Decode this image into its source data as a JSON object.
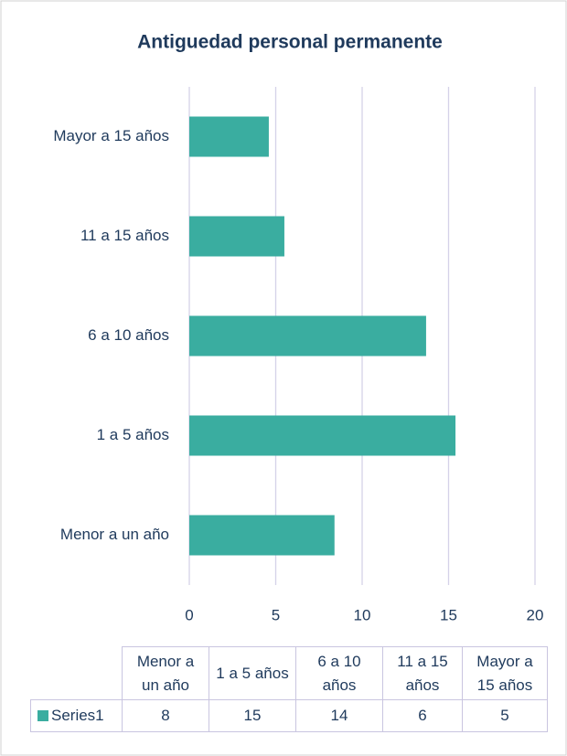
{
  "chart_data": {
    "type": "bar",
    "orientation": "horizontal",
    "title": "Antiguedad personal permanente",
    "categories": [
      "Menor a un año",
      "1 a 5 años",
      "6 a 10 años",
      "11 a 15 años",
      "Mayor a 15 años"
    ],
    "series": [
      {
        "name": "Series1",
        "color": "#3aada0",
        "values": [
          8.4,
          15.4,
          13.7,
          5.5,
          4.6
        ],
        "value_labels": [
          "8",
          "15",
          "14",
          "6",
          "5"
        ]
      }
    ],
    "xlim": [
      0,
      20
    ],
    "xticks": [
      0,
      5,
      10,
      15,
      20
    ],
    "grid": true,
    "data_table": true
  }
}
